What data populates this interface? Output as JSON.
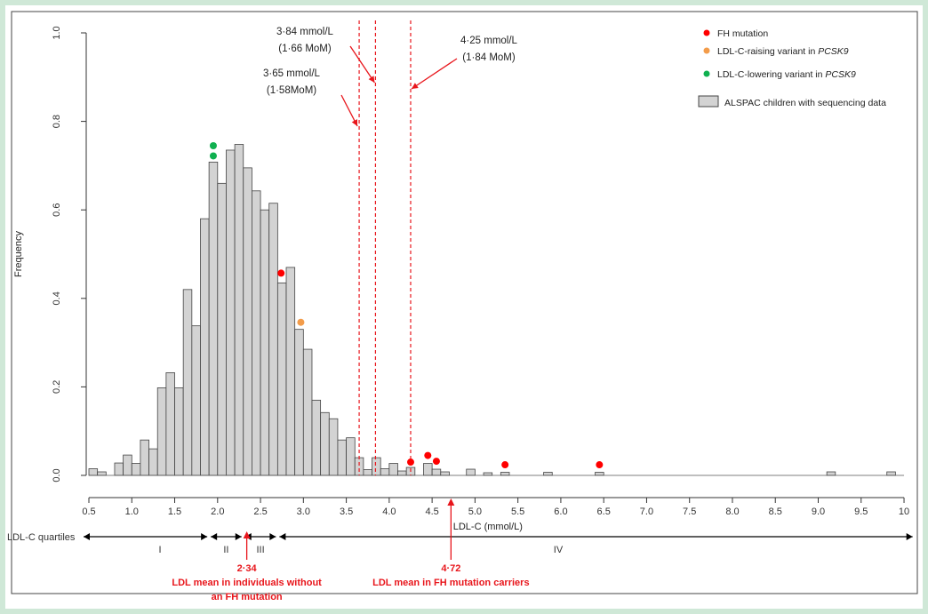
{
  "chart_data": {
    "type": "bar",
    "ylabel": "Frequency",
    "xlabel": "LDL-C (mmol/L)",
    "ylim": [
      0,
      1.0
    ],
    "y_ticks": [
      "0.0",
      "0.2",
      "0.4",
      "0.6",
      "0.8",
      "1.0"
    ],
    "x_ticks": [
      "0.5",
      "1.0",
      "1.5",
      "2.0",
      "2.5",
      "3.0",
      "3.5",
      "4.0",
      "4.5",
      "5.0",
      "5.5",
      "6.0",
      "6.5",
      "7.0",
      "7.5",
      "8.0",
      "8.5",
      "9.0",
      "9.5",
      "10"
    ],
    "bin_width": 0.1,
    "histogram": [
      {
        "x": 0.55,
        "y": 0.015
      },
      {
        "x": 0.65,
        "y": 0.008
      },
      {
        "x": 0.85,
        "y": 0.028
      },
      {
        "x": 0.95,
        "y": 0.046
      },
      {
        "x": 1.05,
        "y": 0.027
      },
      {
        "x": 1.15,
        "y": 0.08
      },
      {
        "x": 1.25,
        "y": 0.06
      },
      {
        "x": 1.35,
        "y": 0.198
      },
      {
        "x": 1.45,
        "y": 0.232
      },
      {
        "x": 1.55,
        "y": 0.198
      },
      {
        "x": 1.65,
        "y": 0.42
      },
      {
        "x": 1.75,
        "y": 0.338
      },
      {
        "x": 1.85,
        "y": 0.58
      },
      {
        "x": 1.95,
        "y": 0.708
      },
      {
        "x": 2.05,
        "y": 0.66
      },
      {
        "x": 2.15,
        "y": 0.735
      },
      {
        "x": 2.25,
        "y": 0.748
      },
      {
        "x": 2.35,
        "y": 0.695
      },
      {
        "x": 2.45,
        "y": 0.643
      },
      {
        "x": 2.55,
        "y": 0.6
      },
      {
        "x": 2.65,
        "y": 0.615
      },
      {
        "x": 2.75,
        "y": 0.435
      },
      {
        "x": 2.85,
        "y": 0.47
      },
      {
        "x": 2.95,
        "y": 0.33
      },
      {
        "x": 3.05,
        "y": 0.285
      },
      {
        "x": 3.15,
        "y": 0.17
      },
      {
        "x": 3.25,
        "y": 0.142
      },
      {
        "x": 3.35,
        "y": 0.128
      },
      {
        "x": 3.45,
        "y": 0.08
      },
      {
        "x": 3.55,
        "y": 0.085
      },
      {
        "x": 3.65,
        "y": 0.04
      },
      {
        "x": 3.75,
        "y": 0.013
      },
      {
        "x": 3.85,
        "y": 0.04
      },
      {
        "x": 3.95,
        "y": 0.015
      },
      {
        "x": 4.05,
        "y": 0.027
      },
      {
        "x": 4.15,
        "y": 0.01
      },
      {
        "x": 4.25,
        "y": 0.018
      },
      {
        "x": 4.45,
        "y": 0.027
      },
      {
        "x": 4.55,
        "y": 0.014
      },
      {
        "x": 4.65,
        "y": 0.008
      },
      {
        "x": 4.95,
        "y": 0.014
      },
      {
        "x": 5.15,
        "y": 0.006
      },
      {
        "x": 5.35,
        "y": 0.007
      },
      {
        "x": 5.85,
        "y": 0.007
      },
      {
        "x": 6.45,
        "y": 0.007
      },
      {
        "x": 9.15,
        "y": 0.008
      },
      {
        "x": 9.85,
        "y": 0.008
      }
    ],
    "points": [
      {
        "x": 1.95,
        "y": 0.745,
        "group": "green"
      },
      {
        "x": 1.95,
        "y": 0.722,
        "group": "green"
      },
      {
        "x": 2.74,
        "y": 0.457,
        "group": "red"
      },
      {
        "x": 2.97,
        "y": 0.346,
        "group": "orange"
      },
      {
        "x": 4.25,
        "y": 0.03,
        "group": "red"
      },
      {
        "x": 4.45,
        "y": 0.045,
        "group": "red"
      },
      {
        "x": 4.55,
        "y": 0.032,
        "group": "red"
      },
      {
        "x": 5.35,
        "y": 0.024,
        "group": "red"
      },
      {
        "x": 6.45,
        "y": 0.024,
        "group": "red"
      }
    ],
    "colors": {
      "bar": "#d3d3d3",
      "red": "#ff0000",
      "orange": "#f39c4a",
      "green": "#10b050",
      "annotation": "#e8151b"
    },
    "vlines": [
      3.65,
      3.84,
      4.25
    ],
    "vline_labels": [
      {
        "line1": "3·65 mmol/L",
        "line2": "(1·58MoM)"
      },
      {
        "line1": "3·84 mmol/L",
        "line2": "(1·66 MoM)"
      },
      {
        "line1": "4·25 mmol/L",
        "line2": "(1·84 MoM)"
      }
    ],
    "legend": [
      {
        "label": "FH mutation",
        "marker": "red"
      },
      {
        "label_plain": "LDL-C-raising variant in ",
        "label_italic": "PCSK9",
        "marker": "orange"
      },
      {
        "label_plain": "LDL-C-lowering variant in ",
        "label_italic": "PCSK9",
        "marker": "green"
      },
      {
        "label": "ALSPAC children with sequencing data",
        "marker": "box"
      }
    ],
    "legend_position": "top-right",
    "quartiles": {
      "label": "LDL-C quartiles",
      "boundaries": [
        1.9,
        2.3,
        2.7
      ],
      "names": [
        "I",
        "II",
        "III",
        "IV"
      ]
    },
    "means": [
      {
        "x": 2.34,
        "value": "2·34",
        "line1": "LDL mean in individuals without",
        "line2": "an FH mutation"
      },
      {
        "x": 4.72,
        "value": "4·72",
        "line1": "LDL mean in FH mutation carriers"
      }
    ]
  }
}
